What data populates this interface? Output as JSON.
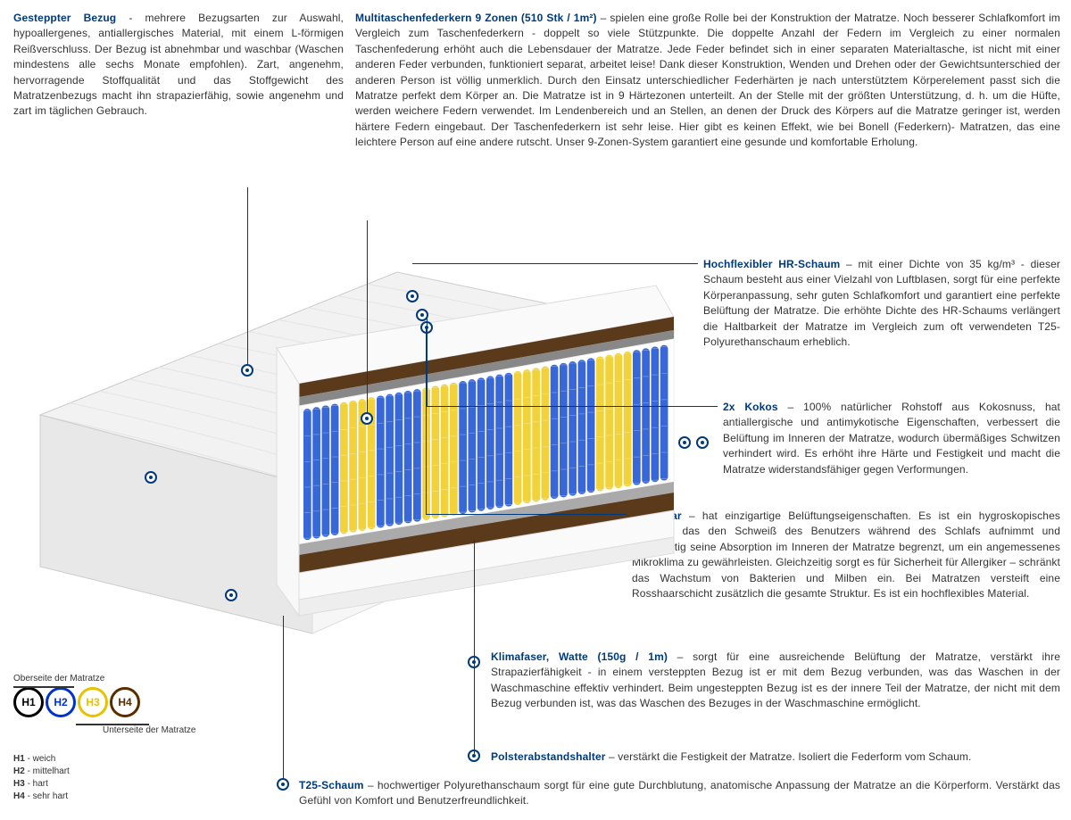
{
  "sections": {
    "gesteppter": {
      "title": "Gesteppter Bezug",
      "text": " - mehrere Bezugsarten zur Auswahl, hypoallergenes, antiallergisches Material, mit einem L-förmigen Reißverschluss. Der Bezug ist abnehmbar und waschbar (Waschen mindestens alle sechs Monate empfohlen). Zart, angenehm, hervorragende Stoffqualität und das Stoffgewicht des Matratzenbezugs macht ihn strapazierfähig, sowie angenehm und zart im täglichen Gebrauch."
    },
    "multitaschen": {
      "title": "Multitaschenfederkern 9 Zonen (510 Stk / 1m²)",
      "text": " – spielen eine große Rolle bei der Konstruktion der Matratze. Noch besserer Schlafkomfort im Vergleich zum Taschenfederkern - doppelt so viele Stützpunkte. Die doppelte Anzahl der Federn im Vergleich zu einer normalen Taschenfederung erhöht auch die Lebensdauer der Matratze. Jede Feder befindet sich in einer separaten Materialtasche, ist nicht mit einer anderen Feder verbunden, funktioniert separat, arbeitet leise! Dank dieser Konstruktion, Wenden und Drehen oder der Gewichtsunterschied der anderen Person ist völlig unmerklich. Durch den Einsatz unterschiedlicher Federhärten je nach unterstütztem Körperelement passt sich die Matratze perfekt dem Körper an. Die Matratze ist in 9 Härtezonen unterteilt. An der Stelle mit der größten Unterstützung, d. h. um die Hüfte, werden weichere Federn verwendet. Im Lendenbereich und an Stellen, an denen der Druck des Körpers auf die Matratze geringer ist, werden härtere Federn eingebaut. Der Taschenfederkern ist sehr leise. Hier gibt es keinen Effekt, wie bei Bonell (Federkern)- Matratzen, das eine leichtere Person auf eine andere rutscht. Unser 9-Zonen-System garantiert eine gesunde und komfortable Erholung."
    },
    "hrschaum": {
      "title": "Hochflexibler HR-Schaum",
      "text": " – mit einer Dichte von 35 kg/m³ - dieser Schaum besteht aus einer Vielzahl von Luftblasen, sorgt für eine perfekte Körperanpassung, sehr guten Schlafkomfort und garantiert eine perfekte Belüftung der Matratze. Die erhöhte Dichte des HR-Schaums verlängert die Haltbarkeit der Matratze im Vergleich zum oft verwendeten T25-Polyurethanschaum erheblich."
    },
    "kokos": {
      "title": "2x Kokos",
      "text": " – 100% natürlicher Rohstoff aus Kokosnuss, hat antiallergische und antimykotische Eigenschaften, verbessert die Belüftung im Inneren der Matratze, wodurch übermäßiges Schwitzen verhindert wird. Es erhöht ihre Härte und Festigkeit und macht die Matratze widerstandsfähiger gegen Verformungen."
    },
    "rosshaar": {
      "title": "Rosshaar",
      "text": " – hat einzigartige Belüftungseigenschaften. Es ist ein hygroskopisches Material, das den Schweiß des Benutzers während des Schlafs aufnimmt und gleichzeitig seine Absorption im Inneren der Matratze begrenzt, um ein angemessenes Mikroklima zu gewährleisten. Gleichzeitig sorgt es für Sicherheit für Allergiker – schränkt das Wachstum von Bakterien und Milben ein. Bei Matratzen versteift eine Rosshaarschicht zusätzlich die gesamte Struktur. Es ist ein hochflexibles Material."
    },
    "klimafaser": {
      "title": "Klimafaser, Watte (150g / 1m)",
      "text": " – sorgt für eine ausreichende Belüftung der Matratze, verstärkt ihre Strapazierfähigkeit - in einem versteppten Bezug ist er mit dem Bezug verbunden, was das Waschen in der Waschmaschine effektiv verhindert. Beim ungesteppten Bezug ist es der innere Teil der Matratze, der nicht mit dem Bezug verbunden ist, was das Waschen des Bezuges in der Waschmaschine ermöglicht."
    },
    "polster": {
      "title": "Polsterabstandshalter",
      "text": " – verstärkt die Festigkeit der Matratze. Isoliert die Federform vom Schaum."
    },
    "t25": {
      "title": "T25-Schaum",
      "text": " – hochwertiger Polyurethanschaum sorgt für eine gute Durchblutung, anatomische Anpassung der Matratze an die Körperform. Verstärkt das Gefühl von Komfort und Benutzerfreundlichkeit."
    }
  },
  "legend": {
    "top_label": "Oberseite der Matratze",
    "bottom_label": "Unterseite der Matratze",
    "circles": [
      {
        "label": "H1",
        "color": "#000000"
      },
      {
        "label": "H2",
        "color": "#0033cc"
      },
      {
        "label": "H3",
        "color": "#e6c200"
      },
      {
        "label": "H4",
        "color": "#5a2d00"
      }
    ],
    "defs": [
      {
        "k": "H1",
        "v": "weich"
      },
      {
        "k": "H2",
        "v": "mittelhart"
      },
      {
        "k": "H3",
        "v": "hart"
      },
      {
        "k": "H4",
        "v": "sehr hart"
      }
    ]
  },
  "diagram": {
    "spring_zones": [
      {
        "color": "#2d5fd6",
        "count": 4
      },
      {
        "color": "#f0d030",
        "count": 4
      },
      {
        "color": "#2d5fd6",
        "count": 5
      },
      {
        "color": "#f0d030",
        "count": 4
      },
      {
        "color": "#2d5fd6",
        "count": 6
      },
      {
        "color": "#f0d030",
        "count": 4
      },
      {
        "color": "#2d5fd6",
        "count": 5
      },
      {
        "color": "#f0d030",
        "count": 4
      },
      {
        "color": "#2d5fd6",
        "count": 4
      }
    ],
    "colors": {
      "cover": "#f2f2f2",
      "foam_white": "#fafafa",
      "kokos": "#5a3a1a",
      "rosshaar": "#888",
      "felt": "#aaa"
    }
  }
}
